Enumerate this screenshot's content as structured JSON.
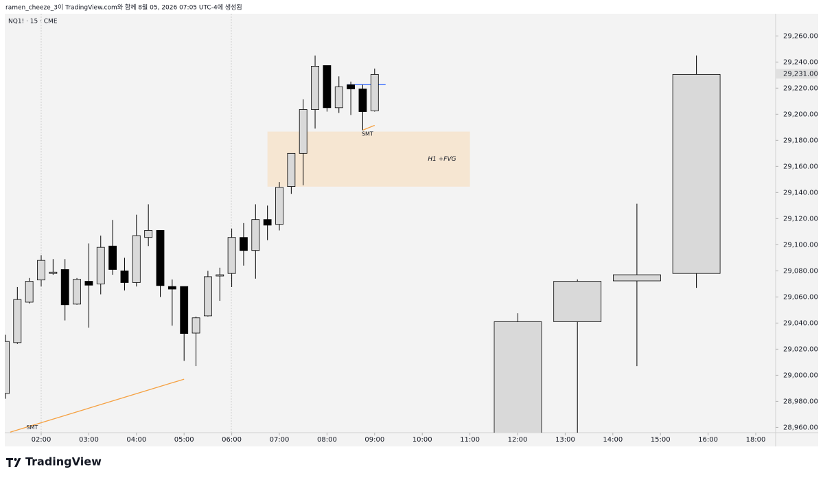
{
  "header": {
    "caption": "ramen_cheeze_3이 TradingView.com와 함께 8월 05, 2026 07:05 UTC-4에 생성됨"
  },
  "footer": {
    "brand": "TradingView"
  },
  "chart_data": {
    "type": "candlestick",
    "title": "NQ1! · 15 · CME",
    "up_color": "#d9d9d9",
    "down_color": "#000000",
    "edge_color": "#000000",
    "xlim": [
      1.24,
      18.42
    ],
    "ylim": [
      28956,
      29277
    ],
    "xticks": [
      {
        "value": 2,
        "label": "02:00"
      },
      {
        "value": 3,
        "label": "03:00"
      },
      {
        "value": 4,
        "label": "04:00"
      },
      {
        "value": 5,
        "label": "05:00"
      },
      {
        "value": 6,
        "label": "06:00"
      },
      {
        "value": 7,
        "label": "07:00"
      },
      {
        "value": 8,
        "label": "08:00"
      },
      {
        "value": 9,
        "label": "09:00"
      },
      {
        "value": 10,
        "label": "10:00"
      },
      {
        "value": 11,
        "label": "11:00"
      },
      {
        "value": 12,
        "label": "12:00"
      },
      {
        "value": 13,
        "label": "13:00"
      },
      {
        "value": 14,
        "label": "14:00"
      },
      {
        "value": 15,
        "label": "15:00"
      },
      {
        "value": 16,
        "label": "16:00"
      },
      {
        "value": 18,
        "label": "18:00"
      }
    ],
    "yticks": [
      {
        "value": 29260,
        "label": "29,260.00"
      },
      {
        "value": 29240,
        "label": "29,240.00"
      },
      {
        "value": 29220,
        "label": "29,220.00"
      },
      {
        "value": 29200,
        "label": "29,200.00"
      },
      {
        "value": 29180,
        "label": "29,180.00"
      },
      {
        "value": 29160,
        "label": "29,160.00"
      },
      {
        "value": 29140,
        "label": "29,140.00"
      },
      {
        "value": 29120,
        "label": "29,120.00"
      },
      {
        "value": 29100,
        "label": "29,100.00"
      },
      {
        "value": 29080,
        "label": "29,080.00"
      },
      {
        "value": 29060,
        "label": "29,060.00"
      },
      {
        "value": 29040,
        "label": "29,040.00"
      },
      {
        "value": 29020,
        "label": "29,020.00"
      },
      {
        "value": 29000,
        "label": "29,000.00"
      },
      {
        "value": 28980,
        "label": "28,980.00"
      },
      {
        "value": 28960,
        "label": "28,960.00"
      }
    ],
    "last_price": {
      "value": 29231,
      "label": "29,231.00"
    },
    "candles": {
      "x": [
        1.25,
        1.5,
        1.75,
        2.0,
        2.25,
        2.5,
        2.75,
        3.0,
        3.25,
        3.5,
        3.75,
        4.0,
        4.25,
        4.5,
        4.75,
        5.0,
        5.25,
        5.5,
        5.75,
        6.0,
        6.25,
        6.5,
        6.75,
        7.0,
        7.25,
        7.5,
        7.75,
        8.0,
        8.25,
        8.5,
        8.75,
        9.0
      ],
      "open": [
        28986,
        29025,
        29056,
        29073,
        29078,
        29081,
        29054.5,
        29072,
        29070,
        29099,
        29080,
        29071,
        29105.6,
        29111,
        29068,
        29068,
        29032.3,
        29045.5,
        29076,
        29078,
        29105.6,
        29095.6,
        29119.3,
        29115.6,
        29144.6,
        29170,
        29203.6,
        29237.3,
        29205,
        29222.6,
        29219.4,
        29202.6
      ],
      "high": [
        29031,
        29067.6,
        29074.5,
        29092,
        29089,
        29089,
        29074.5,
        29101,
        29107,
        29119,
        29090,
        29123,
        29131,
        29111,
        29073.4,
        29068,
        29045,
        29080,
        29082.4,
        29112.4,
        29116.6,
        29131,
        29130,
        29148,
        29170,
        29211.5,
        29245,
        29237.3,
        29229,
        29225,
        29222.6,
        29235
      ],
      "low": [
        28982,
        29024,
        29055,
        29068,
        29077,
        29042,
        29054,
        29036.5,
        29062,
        29077,
        29065,
        29068,
        29099,
        29060,
        29038,
        29011,
        29007,
        29045,
        29057,
        29067.6,
        29084,
        29074,
        29103.5,
        29111,
        29139,
        29145.6,
        29189,
        29202,
        29201,
        29199.4,
        29187.8,
        29202
      ],
      "close": [
        29025.9,
        29058,
        29072,
        29088,
        29079,
        29054,
        29073.5,
        29069,
        29098,
        29081,
        29071,
        29107,
        29111,
        29068.7,
        29066,
        29032,
        29044,
        29075.5,
        29077,
        29105.6,
        29095.6,
        29119.3,
        29115,
        29144,
        29170,
        29203.6,
        29236.8,
        29205,
        29221,
        29219.4,
        29202,
        29230.5
      ]
    },
    "htf_candles": {
      "open": [
        28945,
        29041,
        29072.3,
        29078
      ],
      "high": [
        29047.5,
        29073.4,
        29131.4,
        29245
      ],
      "low": [
        28940,
        28940,
        29007,
        29067
      ],
      "close": [
        29041,
        29072,
        29077,
        29230.5
      ]
    },
    "zones": [
      {
        "label": "H1 +FVG",
        "x": [
          6.75,
          11
        ],
        "y": [
          29144.5,
          29186.7
        ],
        "color": "#f6e6d2"
      }
    ],
    "lines": [
      {
        "x": [
          1.35,
          5.0
        ],
        "y": [
          28956.4,
          28997
        ],
        "color": "#f5a142"
      },
      {
        "x": [
          8.75,
          9.0
        ],
        "y": [
          29187.8,
          29191.5
        ],
        "color": "#f5a142"
      },
      {
        "x": [
          8.42,
          9.23
        ],
        "y": [
          29222.6,
          29222.6
        ],
        "color": "#2962ff"
      }
    ],
    "annotations": [
      {
        "text": "SMT",
        "x": 1.81,
        "y": 28960
      },
      {
        "text": "SMT",
        "x": 8.85,
        "y": 29185
      }
    ]
  }
}
